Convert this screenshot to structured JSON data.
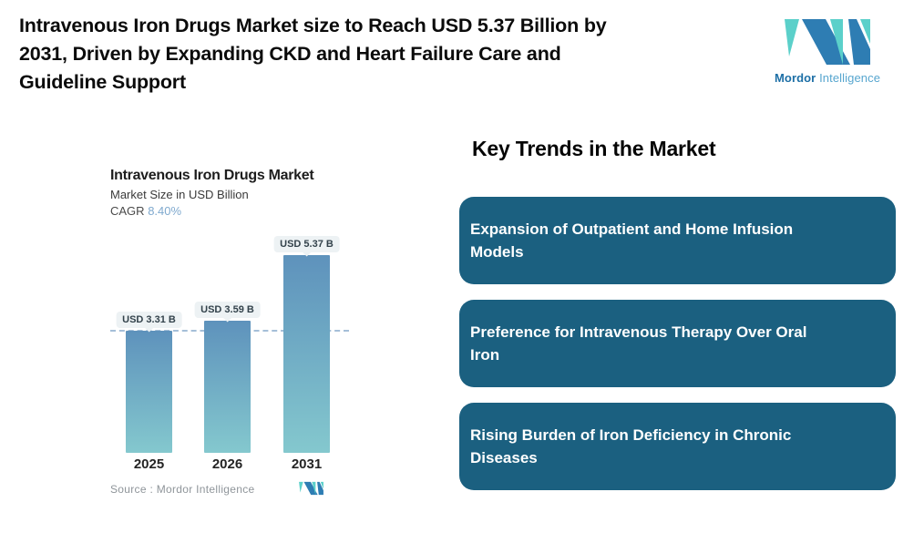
{
  "header": {
    "title_lines": [
      "Intravenous Iron Drugs Market size to Reach USD 5.37 Billion by",
      "2031, Driven by Expanding CKD and Heart Failure Care and",
      "Guideline Support"
    ]
  },
  "logo": {
    "brand_bold": "Mordor",
    "brand_light": "Intelligence",
    "teal": "#5bd0ca",
    "blue": "#2e7db3"
  },
  "chart": {
    "title": "Intravenous Iron Drugs Market",
    "subtitle": "Market Size in USD Billion",
    "cagr_label": "CAGR",
    "cagr_value": "8.40%",
    "source": "Source :  Mordor Intelligence"
  },
  "chart_data": {
    "type": "bar",
    "title": "Intravenous Iron Drugs Market",
    "subtitle": "Market Size in USD Billion",
    "cagr": "8.40%",
    "unit": "USD Billion",
    "categories": [
      "2025",
      "2026",
      "2031"
    ],
    "values": [
      3.31,
      3.59,
      5.37
    ],
    "value_labels": [
      "USD 3.31 B",
      "USD 3.59 B",
      "USD 5.37 B"
    ],
    "ylim": [
      0,
      5.5
    ],
    "reference_line": 3.31,
    "grid": false,
    "legend": false,
    "bar_gradient_top": "#5e92bc",
    "bar_gradient_bottom": "#84c8ce",
    "label_bubble_bg": "#edf2f4",
    "reference_line_color": "#a5bfd8"
  },
  "trends": {
    "heading": "Key Trends in the Market",
    "card_color": "#1b6080",
    "items": [
      {
        "lines": [
          "Expansion of Outpatient and Home Infusion",
          "Models"
        ]
      },
      {
        "lines": [
          "Preference for Intravenous Therapy Over Oral",
          "Iron"
        ]
      },
      {
        "lines": [
          "Rising Burden of Iron Deficiency in Chronic",
          "Diseases"
        ]
      }
    ]
  }
}
